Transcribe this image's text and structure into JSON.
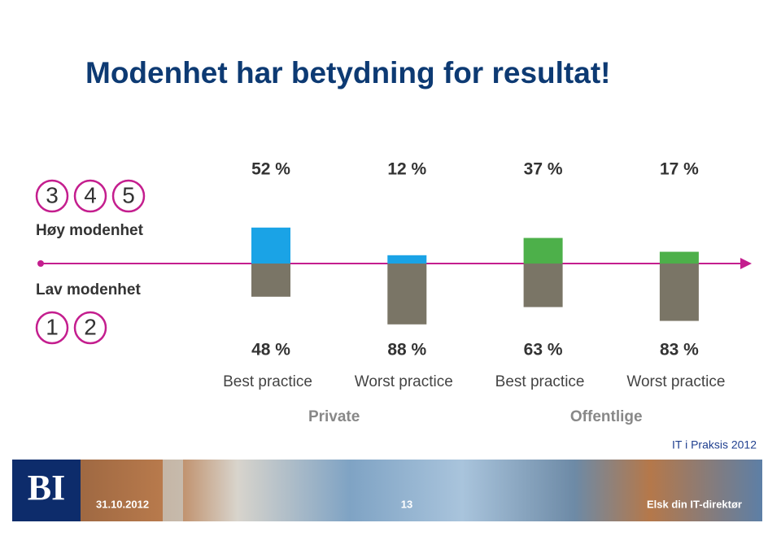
{
  "title": "Modenhet har betydning for resultat!",
  "chart_data": {
    "type": "diverging-bar",
    "categories": [
      "Best practice",
      "Worst practice",
      "Best practice",
      "Worst practice"
    ],
    "groups": [
      "Private",
      "Offentlige"
    ],
    "high_levels": [
      3,
      4,
      5
    ],
    "low_levels": [
      1,
      2
    ],
    "axis_color": "#c41e8e",
    "series": [
      {
        "name": "Høy modenhet",
        "colors": [
          "#1aa3e6",
          "#1aa3e6",
          "#4db04a",
          "#4db04a"
        ],
        "values": [
          52,
          12,
          37,
          17
        ],
        "value_labels": [
          "52 %",
          "12 %",
          "37 %",
          "17 %"
        ]
      },
      {
        "name": "Lav modenhet",
        "color": "#7a7566",
        "values": [
          48,
          88,
          63,
          83
        ],
        "value_labels": [
          "48 %",
          "88 %",
          "63 %",
          "83 %"
        ]
      }
    ]
  },
  "footer": {
    "brand": "IT i Praksis 2012",
    "logo": "BI",
    "date": "31.10.2012",
    "page": 13,
    "tagline": "Elsk din IT-direktør"
  }
}
